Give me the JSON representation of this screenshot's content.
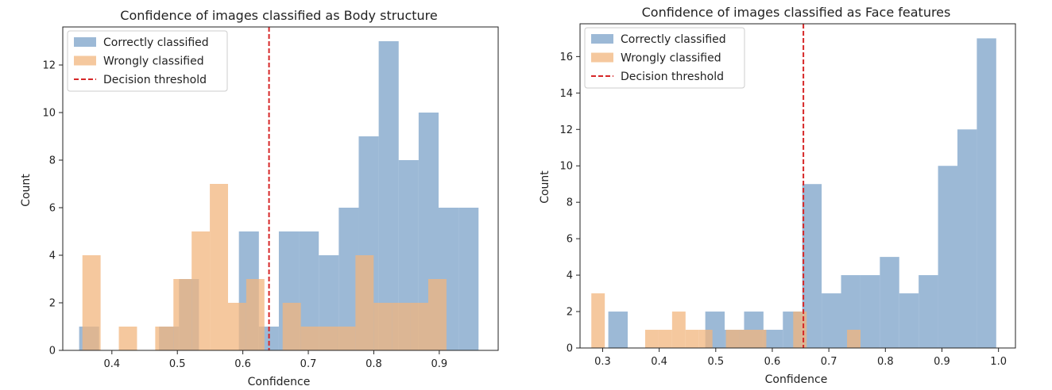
{
  "chart_data": [
    {
      "type": "bar",
      "title": "Confidence of images classified as Body structure",
      "xlabel": "Confidence",
      "ylabel": "Count",
      "xlim": [
        0.325,
        0.99
      ],
      "ylim": [
        0,
        13.6
      ],
      "xticks": [
        0.4,
        0.5,
        0.6,
        0.7,
        0.8,
        0.9
      ],
      "yticks": [
        0,
        2,
        4,
        6,
        8,
        10,
        12
      ],
      "threshold": 0.64,
      "legend_position": "upper left",
      "series": [
        {
          "name": "Correctly classified",
          "color": "#7ba2c8",
          "bin_edges": [
            0.35,
            0.3805,
            0.411,
            0.4415,
            0.472,
            0.5025,
            0.533,
            0.5635,
            0.594,
            0.6245,
            0.655,
            0.6855,
            0.716,
            0.7465,
            0.777,
            0.8075,
            0.838,
            0.8685,
            0.899,
            0.9295,
            0.96
          ],
          "counts": [
            1,
            0,
            0,
            0,
            1,
            3,
            0,
            0,
            5,
            1,
            5,
            5,
            4,
            6,
            9,
            13,
            8,
            10,
            6,
            6
          ]
        },
        {
          "name": "Wrongly classified",
          "color": "#f2b57e",
          "bin_edges": [
            0.355,
            0.3828,
            0.4106,
            0.4384,
            0.4662,
            0.494,
            0.5218,
            0.5496,
            0.5774,
            0.6052,
            0.633,
            0.6608,
            0.6886,
            0.7164,
            0.7442,
            0.772,
            0.7998,
            0.8276,
            0.8554,
            0.8832,
            0.911
          ],
          "counts": [
            4,
            0,
            1,
            0,
            1,
            3,
            5,
            7,
            2,
            3,
            0,
            2,
            1,
            1,
            1,
            4,
            2,
            2,
            2,
            3
          ]
        }
      ],
      "threshold_label": "Decision threshold",
      "threshold_color": "#d62728"
    },
    {
      "type": "bar",
      "title": "Confidence of images classified as Face features",
      "xlabel": "Confidence",
      "ylabel": "Count",
      "xlim": [
        0.26,
        1.03
      ],
      "ylim": [
        0,
        17.8
      ],
      "xticks": [
        0.3,
        0.4,
        0.5,
        0.6,
        0.7,
        0.8,
        0.9,
        1.0
      ],
      "yticks": [
        0,
        2,
        4,
        6,
        8,
        10,
        12,
        14,
        16
      ],
      "threshold": 0.655,
      "legend_position": "upper left",
      "series": [
        {
          "name": "Correctly classified",
          "color": "#7ba2c8",
          "bin_edges": [
            0.31,
            0.3443,
            0.3786,
            0.4129,
            0.4472,
            0.4815,
            0.5158,
            0.5501,
            0.5844,
            0.6187,
            0.653,
            0.6873,
            0.7216,
            0.7559,
            0.7902,
            0.8245,
            0.8588,
            0.8931,
            0.9274,
            0.9617,
            0.996
          ],
          "counts": [
            2,
            0,
            0,
            0,
            0,
            2,
            1,
            2,
            1,
            2,
            9,
            3,
            4,
            4,
            5,
            3,
            4,
            10,
            12,
            17
          ]
        },
        {
          "name": "Wrongly classified",
          "color": "#f2b57e",
          "bin_edges": [
            0.28,
            0.3038,
            0.3276,
            0.3514,
            0.3752,
            0.399,
            0.4228,
            0.4466,
            0.4704,
            0.4942,
            0.518,
            0.5418,
            0.5656,
            0.5894,
            0.6132,
            0.637,
            0.6608,
            0.6846,
            0.7084,
            0.7322,
            0.756
          ],
          "counts": [
            3,
            0,
            0,
            0,
            1,
            1,
            2,
            1,
            1,
            0,
            1,
            1,
            1,
            0,
            0,
            2,
            0,
            0,
            0,
            1
          ]
        }
      ],
      "threshold_label": "Decision threshold",
      "threshold_color": "#d62728"
    }
  ]
}
